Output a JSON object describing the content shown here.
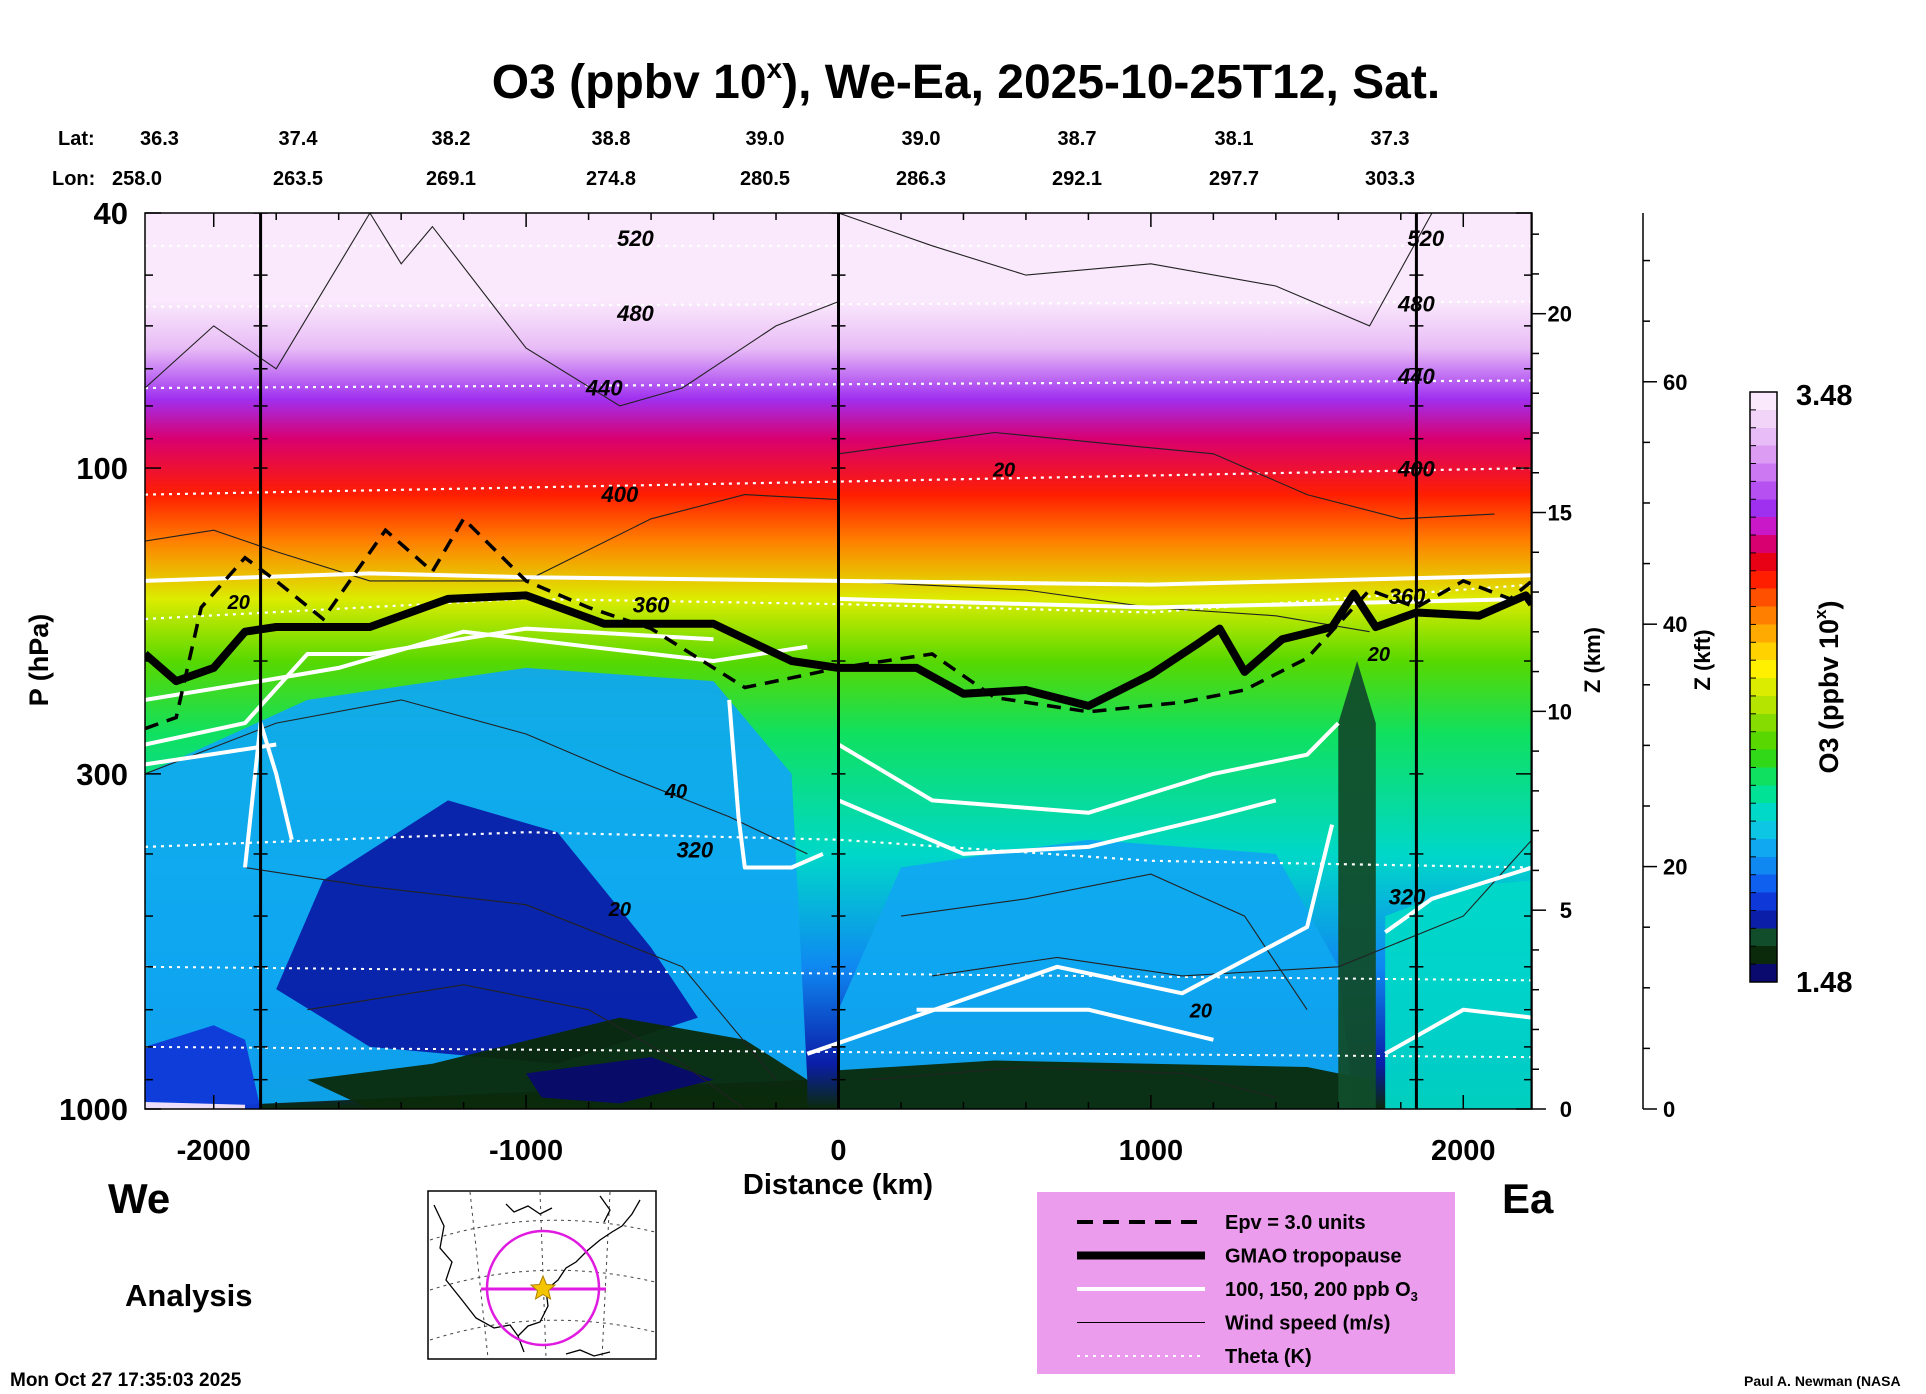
{
  "header": {
    "title_main": "O3 (ppbv 10",
    "title_sup": "x",
    "title_rest": "), We-Ea, 2025-10-25T12, Sat."
  },
  "coords": {
    "lat_label": "Lat:",
    "lon_label": "Lon:",
    "lat_values": [
      "36.3",
      "37.4",
      "38.2",
      "38.8",
      "39.0",
      "39.0",
      "38.7",
      "38.1",
      "37.3"
    ],
    "lon_values": [
      "258.0",
      "263.5",
      "269.1",
      "274.8",
      "280.5",
      "286.3",
      "292.1",
      "297.7",
      "303.3"
    ]
  },
  "footer": {
    "left_dir": "We",
    "right_dir": "Ea",
    "analysis": "Analysis",
    "timestamp": "Mon Oct 27 17:35:03 2025",
    "credit": "Paul A. Newman (NASA"
  },
  "colorbar": {
    "label_main": "O3 (ppbv 10",
    "label_sup": "x",
    "label_rest": ")",
    "max_label": "3.48",
    "min_label": "1.48",
    "colors": [
      "#0a0a6e",
      "#0b2a0b",
      "#114d2b",
      "#0a1ea8",
      "#0f38d8",
      "#1060f0",
      "#0f88f2",
      "#10a8f0",
      "#0cc6e4",
      "#00d8c8",
      "#00e296",
      "#10e060",
      "#30d818",
      "#58d800",
      "#86dc00",
      "#b4e400",
      "#dcec00",
      "#fff000",
      "#ffd200",
      "#ffaa00",
      "#ff8000",
      "#ff5000",
      "#ff1e00",
      "#e80014",
      "#d80070",
      "#c818c8",
      "#a030f0",
      "#b650f0",
      "#cc78f2",
      "#dc9cf4",
      "#e8bcf6",
      "#f2d4f8",
      "#fae8fc"
    ]
  },
  "legend": {
    "items": [
      {
        "label": "Epv = 3.0 units",
        "style": "dashed"
      },
      {
        "label": "GMAO tropopause",
        "style": "thick"
      },
      {
        "label": "100, 150, 200 ppb O",
        "sub": "3",
        "style": "white"
      },
      {
        "label": "Wind speed (m/s)",
        "style": "thin"
      },
      {
        "label": "Theta (K)",
        "style": "dotted"
      }
    ],
    "bg": "#ec9cec"
  },
  "chart_data": {
    "type": "heatmap",
    "title": "O3 (ppbv 10^x), We-Ea, 2025-10-25T12, Sat.",
    "xlabel": "Distance (km)",
    "ylabel": "P (hPa)",
    "y2label": "Z (km)",
    "y3label": "Z (kft)",
    "xlim": [
      -2220,
      2220
    ],
    "ylim": [
      1000,
      40
    ],
    "x_ticks": [
      -2000,
      -1000,
      0,
      1000,
      2000
    ],
    "x_tick_labels": [
      "-2000",
      "-1000",
      "0",
      "1000",
      "2000"
    ],
    "p_ticks": [
      40,
      100,
      300,
      1000
    ],
    "p_tick_labels": [
      "40",
      "100",
      "300",
      "1000"
    ],
    "z_km_ticks": [
      0,
      5,
      10,
      15,
      20
    ],
    "z_km_tick_labels": [
      "0",
      "5",
      "10",
      "15",
      "20"
    ],
    "z_kft_ticks": [
      0,
      20,
      40,
      60
    ],
    "z_kft_tick_labels": [
      "0",
      "20",
      "40",
      "60"
    ],
    "colorbar_range": [
      1.48,
      3.48
    ],
    "vertical_lines_km": [
      -1850,
      0,
      1850
    ],
    "o3_log_ppbv_profile": [
      {
        "p": 40,
        "v": 3.48
      },
      {
        "p": 55,
        "v": 3.45
      },
      {
        "p": 65,
        "v": 3.3
      },
      {
        "p": 78,
        "v": 3.1
      },
      {
        "p": 90,
        "v": 2.95
      },
      {
        "p": 110,
        "v": 2.85
      },
      {
        "p": 130,
        "v": 2.72
      },
      {
        "p": 160,
        "v": 2.5
      },
      {
        "p": 200,
        "v": 2.3
      },
      {
        "p": 260,
        "v": 2.18
      },
      {
        "p": 400,
        "v": 2.05
      },
      {
        "p": 600,
        "v": 1.9
      },
      {
        "p": 850,
        "v": 1.7
      },
      {
        "p": 1000,
        "v": 1.55
      }
    ],
    "tropopause": [
      {
        "x": -2220,
        "p": 195
      },
      {
        "x": -2120,
        "p": 215
      },
      {
        "x": -2000,
        "p": 205
      },
      {
        "x": -1900,
        "p": 180
      },
      {
        "x": -1800,
        "p": 177
      },
      {
        "x": -1500,
        "p": 177
      },
      {
        "x": -1250,
        "p": 160
      },
      {
        "x": -1000,
        "p": 158
      },
      {
        "x": -750,
        "p": 175
      },
      {
        "x": -400,
        "p": 175
      },
      {
        "x": -150,
        "p": 200
      },
      {
        "x": 0,
        "p": 205
      },
      {
        "x": 250,
        "p": 205
      },
      {
        "x": 400,
        "p": 225
      },
      {
        "x": 600,
        "p": 222
      },
      {
        "x": 800,
        "p": 235
      },
      {
        "x": 1000,
        "p": 210
      },
      {
        "x": 1150,
        "p": 188
      },
      {
        "x": 1220,
        "p": 178
      },
      {
        "x": 1300,
        "p": 208
      },
      {
        "x": 1420,
        "p": 185
      },
      {
        "x": 1580,
        "p": 177
      },
      {
        "x": 1650,
        "p": 157
      },
      {
        "x": 1720,
        "p": 177
      },
      {
        "x": 1850,
        "p": 168
      },
      {
        "x": 2050,
        "p": 170
      },
      {
        "x": 2200,
        "p": 158
      },
      {
        "x": 2220,
        "p": 163
      }
    ],
    "epv_3_units": [
      {
        "x": -2220,
        "p": 255
      },
      {
        "x": -2120,
        "p": 245
      },
      {
        "x": -2040,
        "p": 165
      },
      {
        "x": -1900,
        "p": 138
      },
      {
        "x": -1800,
        "p": 150
      },
      {
        "x": -1650,
        "p": 172
      },
      {
        "x": -1450,
        "p": 125
      },
      {
        "x": -1300,
        "p": 145
      },
      {
        "x": -1200,
        "p": 120
      },
      {
        "x": -1000,
        "p": 150
      },
      {
        "x": -800,
        "p": 165
      },
      {
        "x": -600,
        "p": 178
      },
      {
        "x": -300,
        "p": 220
      },
      {
        "x": -100,
        "p": 210
      },
      {
        "x": 0,
        "p": 205
      },
      {
        "x": 300,
        "p": 195
      },
      {
        "x": 500,
        "p": 228
      },
      {
        "x": 800,
        "p": 240
      },
      {
        "x": 1100,
        "p": 232
      },
      {
        "x": 1300,
        "p": 222
      },
      {
        "x": 1500,
        "p": 198
      },
      {
        "x": 1700,
        "p": 155
      },
      {
        "x": 1850,
        "p": 165
      },
      {
        "x": 2000,
        "p": 150
      },
      {
        "x": 2150,
        "p": 160
      },
      {
        "x": 2220,
        "p": 150
      }
    ],
    "theta_K": [
      {
        "value": 320,
        "label": "320",
        "points": [
          {
            "x": -2220,
            "p": 390
          },
          {
            "x": -1000,
            "p": 370
          },
          {
            "x": 0,
            "p": 380
          },
          {
            "x": 1000,
            "p": 410
          },
          {
            "x": 2220,
            "p": 420
          }
        ]
      },
      {
        "value": 360,
        "label": "360",
        "points": [
          {
            "x": -2220,
            "p": 172
          },
          {
            "x": -1000,
            "p": 160
          },
          {
            "x": 0,
            "p": 163
          },
          {
            "x": 1000,
            "p": 168
          },
          {
            "x": 2220,
            "p": 152
          }
        ]
      },
      {
        "value": 400,
        "label": "400",
        "points": [
          {
            "x": -2220,
            "p": 110
          },
          {
            "x": 0,
            "p": 105
          },
          {
            "x": 2220,
            "p": 100
          }
        ]
      },
      {
        "value": 440,
        "label": "440",
        "points": [
          {
            "x": -2220,
            "p": 75
          },
          {
            "x": 2220,
            "p": 73
          }
        ]
      },
      {
        "value": 480,
        "label": "480",
        "points": [
          {
            "x": -2220,
            "p": 56
          },
          {
            "x": 2220,
            "p": 55
          }
        ]
      },
      {
        "value": 520,
        "label": "520",
        "points": [
          {
            "x": -2220,
            "p": 45
          },
          {
            "x": 2220,
            "p": 45
          }
        ]
      }
    ],
    "contour_labels": [
      "20",
      "40",
      "20",
      "20",
      "20",
      "20",
      "320",
      "320",
      "360",
      "360",
      "400",
      "400",
      "440",
      "440",
      "480",
      "480",
      "520",
      "520"
    ]
  }
}
